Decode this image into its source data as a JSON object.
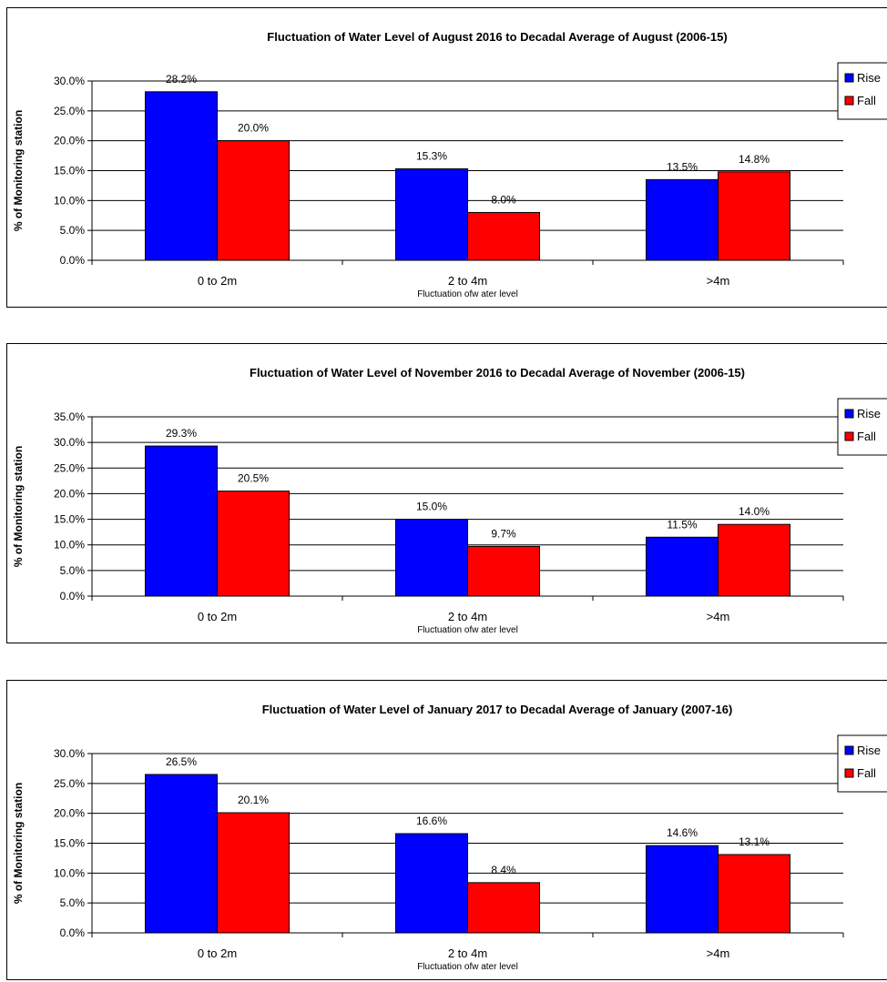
{
  "chart_data": [
    {
      "type": "bar",
      "title": "Fluctuation of Water Level of August 2016 to Decadal Average of  August (2006-15)",
      "xlabel": "Fluctuation ofw ater level",
      "ylabel": "% of Monitoring station",
      "categories": [
        "0 to 2m",
        "2 to 4m",
        ">4m"
      ],
      "ylim": [
        0,
        30
      ],
      "yticks": [
        "0.0%",
        "5.0%",
        "10.0%",
        "15.0%",
        "20.0%",
        "25.0%",
        "30.0%"
      ],
      "series": [
        {
          "name": "Rise",
          "color": "#0000ff",
          "values": [
            28.2,
            15.3,
            13.5
          ],
          "labels": [
            "28.2%",
            "15.3%",
            "13.5%"
          ]
        },
        {
          "name": "Fall",
          "color": "#ff0000",
          "values": [
            20.0,
            8.0,
            14.8
          ],
          "labels": [
            "20.0%",
            "8.0%",
            "14.8%"
          ]
        }
      ],
      "grid": true,
      "legend": "right"
    },
    {
      "type": "bar",
      "title": "Fluctuation of Water Level of November 2016 to Decadal Average of  November (2006-15)",
      "xlabel": "Fluctuation ofw ater level",
      "ylabel": "% of Monitoring station",
      "categories": [
        "0 to 2m",
        "2 to 4m",
        ">4m"
      ],
      "ylim": [
        0,
        35
      ],
      "yticks": [
        "0.0%",
        "5.0%",
        "10.0%",
        "15.0%",
        "20.0%",
        "25.0%",
        "30.0%",
        "35.0%"
      ],
      "series": [
        {
          "name": "Rise",
          "color": "#0000ff",
          "values": [
            29.3,
            15.0,
            11.5
          ],
          "labels": [
            "29.3%",
            "15.0%",
            "11.5%"
          ]
        },
        {
          "name": "Fall",
          "color": "#ff0000",
          "values": [
            20.5,
            9.7,
            14.0
          ],
          "labels": [
            "20.5%",
            "9.7%",
            "14.0%"
          ]
        }
      ],
      "grid": true,
      "legend": "right"
    },
    {
      "type": "bar",
      "title": "Fluctuation of Water Level of January 2017 to Decadal Average of  January (2007-16)",
      "xlabel": "Fluctuation ofw ater level",
      "ylabel": "% of Monitoring station",
      "categories": [
        "0 to 2m",
        "2 to 4m",
        ">4m"
      ],
      "ylim": [
        0,
        30
      ],
      "yticks": [
        "0.0%",
        "5.0%",
        "10.0%",
        "15.0%",
        "20.0%",
        "25.0%",
        "30.0%"
      ],
      "series": [
        {
          "name": "Rise",
          "color": "#0000ff",
          "values": [
            26.5,
            16.6,
            14.6
          ],
          "labels": [
            "26.5%",
            "16.6%",
            "14.6%"
          ]
        },
        {
          "name": "Fall",
          "color": "#ff0000",
          "values": [
            20.1,
            8.4,
            13.1
          ],
          "labels": [
            "20.1%",
            "8.4%",
            "13.1%"
          ]
        }
      ],
      "grid": true,
      "legend": "right"
    }
  ]
}
